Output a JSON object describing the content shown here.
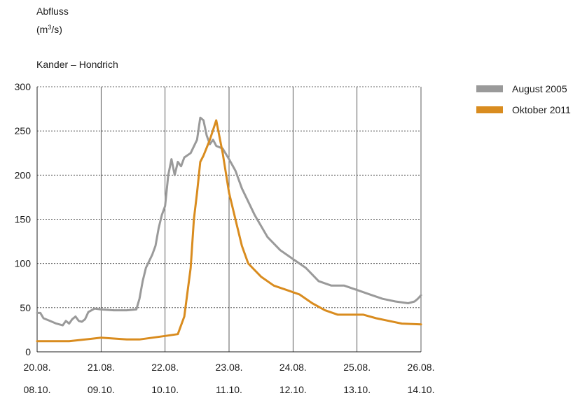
{
  "chart_data": {
    "type": "line",
    "title": "Kander – Hondrich",
    "ylabel_line1": "Abfluss",
    "ylabel_unit_base": "(m",
    "ylabel_unit_sup": "3",
    "ylabel_unit_end": "/s)",
    "ylim": [
      0,
      300
    ],
    "yticks": [
      0,
      50,
      100,
      150,
      200,
      250,
      300
    ],
    "xlim": [
      0,
      6
    ],
    "xticks_row1": [
      "20.08.",
      "21.08.",
      "22.08.",
      "23.08.",
      "24.08.",
      "25.08.",
      "26.08."
    ],
    "xticks_row2": [
      "08.10.",
      "09.10.",
      "10.10.",
      "11.10.",
      "12.10.",
      "13.10.",
      "14.10."
    ],
    "grid": {
      "vertical": "solid",
      "horizontal": "dotted"
    },
    "legend_position": "top-right",
    "series": [
      {
        "name": "August 2005",
        "color": "#9a9a9a",
        "x": [
          0,
          0.05,
          0.1,
          0.2,
          0.3,
          0.4,
          0.45,
          0.5,
          0.55,
          0.6,
          0.65,
          0.7,
          0.75,
          0.8,
          0.9,
          1.0,
          1.2,
          1.4,
          1.55,
          1.6,
          1.65,
          1.7,
          1.8,
          1.85,
          1.9,
          1.95,
          2.0,
          2.05,
          2.1,
          2.15,
          2.2,
          2.25,
          2.3,
          2.4,
          2.5,
          2.55,
          2.6,
          2.65,
          2.7,
          2.75,
          2.8,
          2.9,
          3.0,
          3.1,
          3.2,
          3.4,
          3.6,
          3.8,
          4.0,
          4.2,
          4.4,
          4.6,
          4.8,
          5.0,
          5.2,
          5.4,
          5.6,
          5.8,
          5.9,
          5.95,
          6.0
        ],
        "values": [
          44,
          44,
          38,
          35,
          32,
          30,
          35,
          32,
          37,
          40,
          35,
          34,
          37,
          45,
          49,
          48,
          47,
          47,
          48,
          60,
          80,
          95,
          110,
          120,
          140,
          155,
          165,
          200,
          218,
          200,
          215,
          210,
          220,
          225,
          240,
          265,
          262,
          245,
          235,
          240,
          233,
          230,
          218,
          205,
          185,
          155,
          130,
          115,
          105,
          95,
          80,
          75,
          75,
          70,
          65,
          60,
          57,
          55,
          57,
          60,
          64
        ]
      },
      {
        "name": "Oktober 2011",
        "color": "#d98c1f",
        "x": [
          0,
          0.5,
          1.0,
          1.4,
          1.6,
          2.0,
          2.2,
          2.3,
          2.4,
          2.45,
          2.5,
          2.55,
          2.6,
          2.7,
          2.8,
          2.9,
          3.0,
          3.1,
          3.2,
          3.3,
          3.5,
          3.7,
          3.9,
          4.1,
          4.3,
          4.5,
          4.7,
          4.9,
          5.1,
          5.3,
          5.5,
          5.7,
          6.0
        ],
        "values": [
          12,
          12,
          16,
          14,
          14,
          18,
          20,
          40,
          95,
          150,
          180,
          215,
          222,
          240,
          262,
          225,
          180,
          150,
          120,
          100,
          85,
          75,
          70,
          65,
          55,
          47,
          42,
          42,
          42,
          38,
          35,
          32,
          31
        ]
      }
    ]
  }
}
